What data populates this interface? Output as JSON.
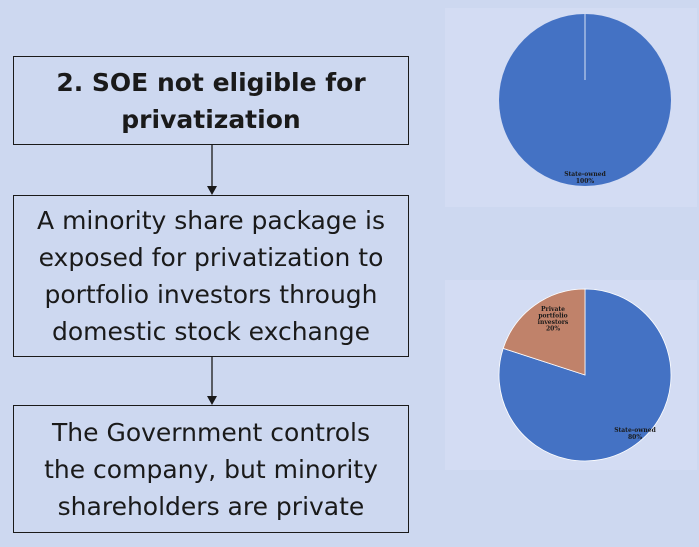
{
  "flow": {
    "box1": {
      "lines": [
        "2. SOE not eligible for",
        "privatization"
      ]
    },
    "box2": {
      "lines": [
        "A minority share package is",
        "exposed for privatization to",
        "portfolio investors through",
        "domestic stock exchange"
      ]
    },
    "box3": {
      "lines": [
        "The Government controls",
        "the company, but minority",
        "shareholders are private"
      ]
    }
  },
  "chart_data": [
    {
      "type": "pie",
      "slices": [
        {
          "label": "State-owned",
          "value": 100,
          "value_label": "100%",
          "color": "#4472c4"
        }
      ]
    },
    {
      "type": "pie",
      "slices": [
        {
          "label": "State-owned",
          "value": 80,
          "value_label": "80%",
          "color": "#4472c4"
        },
        {
          "label": "Private portfolio investors",
          "value": 20,
          "value_label": "20%",
          "color": "#c0826a"
        }
      ]
    }
  ]
}
